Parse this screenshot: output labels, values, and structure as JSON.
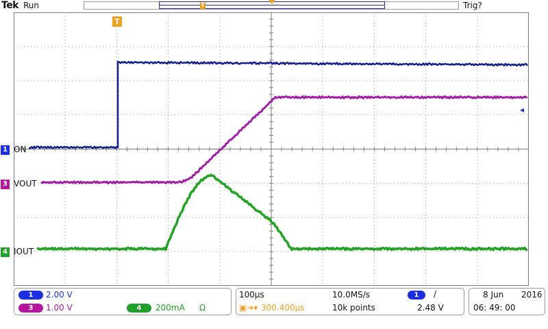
{
  "top": {
    "brand": "Tek",
    "acq_state": "Run",
    "trig_state": "Trig?",
    "trigger_marker": "T"
  },
  "channels": [
    {
      "number": "1",
      "label": "ON",
      "color": "#1b2fe0",
      "scale": "2.00 V"
    },
    {
      "number": "3",
      "label": "VOUT",
      "color": "#b3169c",
      "scale": "1.00 V"
    },
    {
      "number": "4",
      "label": "IOUT",
      "color": "#20a02a",
      "scale": "200mA",
      "unit_suffix": "Ω"
    }
  ],
  "trace_colors": {
    "ch1": "#0f1f8f",
    "ch3": "#a21ea6",
    "ch4": "#23a323"
  },
  "horizontal": {
    "timebase": "100µs",
    "sample_rate": "10.0MS/s",
    "trigger_delay": "300.400µs",
    "record_length": "10k points"
  },
  "trigger": {
    "source": "1",
    "slope": "/",
    "level": "2.48 V"
  },
  "datetime": {
    "date": "8 Jun",
    "year": "2016",
    "time": "06: 49: 00"
  }
}
